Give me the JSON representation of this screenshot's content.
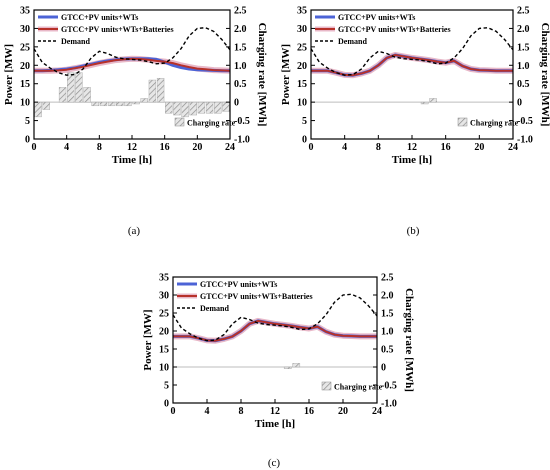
{
  "colors": {
    "blue": "#4c63d6",
    "red": "#b7312a",
    "pink": "#e8b8c8",
    "demand": "#000000",
    "hatch": "#9a9a9a"
  },
  "chart_data": [
    {
      "type": "line",
      "panel_label": "(a)",
      "xlabel": "Time [h]",
      "ylabel": "Power [MW]",
      "y2label": "Charging rate [MWh]",
      "xlim": [
        0,
        24
      ],
      "ylim": [
        0,
        35
      ],
      "y2lim": [
        -1.0,
        2.5
      ],
      "xticks": [
        "0",
        "4",
        "8",
        "12",
        "16",
        "20",
        "24"
      ],
      "yticks": [
        "0",
        "5",
        "10",
        "15",
        "20",
        "25",
        "30",
        "35"
      ],
      "y2ticks": [
        "-1.0",
        "-0.5",
        "0",
        "0.5",
        "1.0",
        "1.5",
        "2.0",
        "2.5"
      ],
      "legend": [
        "GTCC+PV units+WTs",
        "GTCC+PV units+WTs+Batteries",
        "Demand"
      ],
      "bar_legend": "Charging rate",
      "x": [
        0,
        1,
        2,
        3,
        4,
        5,
        6,
        7,
        8,
        9,
        10,
        11,
        12,
        13,
        14,
        15,
        16,
        17,
        18,
        19,
        20,
        21,
        22,
        23,
        24
      ],
      "series": [
        {
          "name": "GTCC+PV units+WTs",
          "values": [
            18.5,
            18.5,
            18.6,
            18.8,
            19.0,
            19.3,
            19.8,
            20.3,
            20.8,
            21.2,
            21.5,
            21.7,
            21.8,
            21.8,
            21.8,
            21.6,
            20.9,
            20.0,
            19.4,
            19.0,
            18.8,
            18.7,
            18.6,
            18.5,
            18.5
          ]
        },
        {
          "name": "GTCC+PV units+WTs+Batteries",
          "values": [
            18.5,
            18.5,
            18.5,
            18.6,
            18.8,
            19.2,
            19.6,
            20.1,
            20.6,
            21.0,
            21.4,
            21.6,
            21.8,
            21.7,
            21.5,
            21.2,
            21.0,
            20.6,
            20.0,
            19.5,
            19.1,
            18.9,
            18.7,
            18.6,
            18.5
          ]
        },
        {
          "name": "Demand",
          "values": [
            24.5,
            20.8,
            19.2,
            18.0,
            17.3,
            17.5,
            19.0,
            22.0,
            23.8,
            23.2,
            22.2,
            21.8,
            21.6,
            21.4,
            21.0,
            20.4,
            20.6,
            22.0,
            24.5,
            28.0,
            30.0,
            30.2,
            29.2,
            27.0,
            24.2
          ]
        }
      ],
      "bars": {
        "x": [
          0,
          1,
          2,
          3,
          4,
          5,
          6,
          7,
          8,
          9,
          10,
          11,
          12,
          13,
          14,
          15,
          16,
          17,
          18,
          19,
          20,
          21,
          22,
          23
        ],
        "values": [
          -0.4,
          -0.2,
          0.0,
          0.4,
          0.8,
          0.8,
          0.4,
          -0.1,
          -0.1,
          -0.1,
          -0.1,
          -0.1,
          -0.05,
          0.1,
          0.6,
          0.65,
          -0.3,
          -0.35,
          -0.4,
          -0.35,
          -0.3,
          -0.3,
          -0.3,
          -0.25
        ]
      }
    },
    {
      "type": "line",
      "panel_label": "(b)",
      "xlabel": "Time [h]",
      "ylabel": "Power [MW]",
      "y2label": "Charging rate [MWh]",
      "xlim": [
        0,
        24
      ],
      "ylim": [
        0,
        35
      ],
      "y2lim": [
        -1.0,
        2.5
      ],
      "xticks": [
        "0",
        "4",
        "8",
        "12",
        "16",
        "20",
        "24"
      ],
      "yticks": [
        "0",
        "5",
        "10",
        "15",
        "20",
        "25",
        "30",
        "35"
      ],
      "y2ticks": [
        "-1.0",
        "-0.5",
        "0",
        "0.5",
        "1.0",
        "1.5",
        "2.0",
        "2.5"
      ],
      "legend": [
        "GTCC+PV units+WTs",
        "GTCC+PV units+WTs+Batteries",
        "Demand"
      ],
      "bar_legend": "Charging rate",
      "x": [
        0,
        1,
        2,
        3,
        4,
        5,
        6,
        7,
        8,
        9,
        10,
        11,
        12,
        13,
        14,
        15,
        16,
        17,
        18,
        19,
        20,
        21,
        22,
        23,
        24
      ],
      "series": [
        {
          "name": "GTCC+PV units+WTs",
          "values": [
            18.5,
            18.5,
            18.5,
            18.0,
            17.4,
            17.3,
            17.8,
            18.5,
            20.0,
            22.0,
            22.8,
            22.4,
            22.0,
            21.7,
            21.4,
            21.0,
            20.7,
            21.2,
            19.8,
            19.0,
            18.7,
            18.6,
            18.5,
            18.5,
            18.5
          ]
        },
        {
          "name": "GTCC+PV units+WTs+Batteries",
          "values": [
            18.5,
            18.5,
            18.5,
            18.0,
            17.4,
            17.3,
            17.8,
            18.5,
            20.0,
            22.0,
            22.8,
            22.4,
            22.0,
            21.7,
            21.4,
            21.0,
            20.7,
            21.2,
            19.8,
            19.0,
            18.7,
            18.6,
            18.5,
            18.5,
            18.5
          ]
        },
        {
          "name": "Demand",
          "values": [
            24.5,
            20.8,
            19.2,
            18.0,
            17.3,
            17.5,
            19.0,
            22.0,
            23.8,
            23.2,
            22.2,
            21.8,
            21.6,
            21.4,
            21.0,
            20.4,
            20.6,
            22.0,
            24.5,
            28.0,
            30.0,
            30.2,
            29.2,
            27.0,
            24.2
          ]
        }
      ],
      "bars": {
        "x": [
          13,
          14
        ],
        "values": [
          -0.05,
          0.1
        ]
      }
    },
    {
      "type": "line",
      "panel_label": "(c)",
      "xlabel": "Time [h]",
      "ylabel": "Power [MW]",
      "y2label": "Charging rate [MWh]",
      "xlim": [
        0,
        24
      ],
      "ylim": [
        0,
        35
      ],
      "y2lim": [
        -1.0,
        2.5
      ],
      "xticks": [
        "0",
        "4",
        "8",
        "12",
        "16",
        "20",
        "24"
      ],
      "yticks": [
        "0",
        "5",
        "10",
        "15",
        "20",
        "25",
        "30",
        "35"
      ],
      "y2ticks": [
        "-1.0",
        "-0.5",
        "0",
        "0.5",
        "1.0",
        "1.5",
        "2.0",
        "2.5"
      ],
      "legend": [
        "GTCC+PV units+WTs",
        "GTCC+PV units+WTs+Batteries",
        "Demand"
      ],
      "bar_legend": "Charging rate",
      "x": [
        0,
        1,
        2,
        3,
        4,
        5,
        6,
        7,
        8,
        9,
        10,
        11,
        12,
        13,
        14,
        15,
        16,
        17,
        18,
        19,
        20,
        21,
        22,
        23,
        24
      ],
      "series": [
        {
          "name": "GTCC+PV units+WTs",
          "values": [
            18.5,
            18.5,
            18.5,
            18.0,
            17.4,
            17.3,
            17.8,
            18.5,
            20.0,
            22.0,
            22.8,
            22.4,
            22.0,
            21.7,
            21.4,
            21.0,
            20.7,
            21.2,
            19.8,
            19.0,
            18.7,
            18.6,
            18.5,
            18.5,
            18.5
          ]
        },
        {
          "name": "GTCC+PV units+WTs+Batteries",
          "values": [
            18.5,
            18.5,
            18.5,
            18.0,
            17.4,
            17.3,
            17.8,
            18.5,
            20.0,
            22.0,
            22.8,
            22.4,
            22.0,
            21.7,
            21.4,
            21.0,
            20.7,
            21.2,
            19.8,
            19.0,
            18.7,
            18.6,
            18.5,
            18.5,
            18.5
          ]
        },
        {
          "name": "Demand",
          "values": [
            24.5,
            20.8,
            19.2,
            18.0,
            17.3,
            17.5,
            19.0,
            22.0,
            23.8,
            23.2,
            22.2,
            21.8,
            21.6,
            21.4,
            21.0,
            20.4,
            20.6,
            22.0,
            24.5,
            28.0,
            30.0,
            30.2,
            29.2,
            27.0,
            24.2
          ]
        }
      ],
      "bars": {
        "x": [
          13,
          14
        ],
        "values": [
          -0.05,
          0.1
        ]
      }
    }
  ]
}
